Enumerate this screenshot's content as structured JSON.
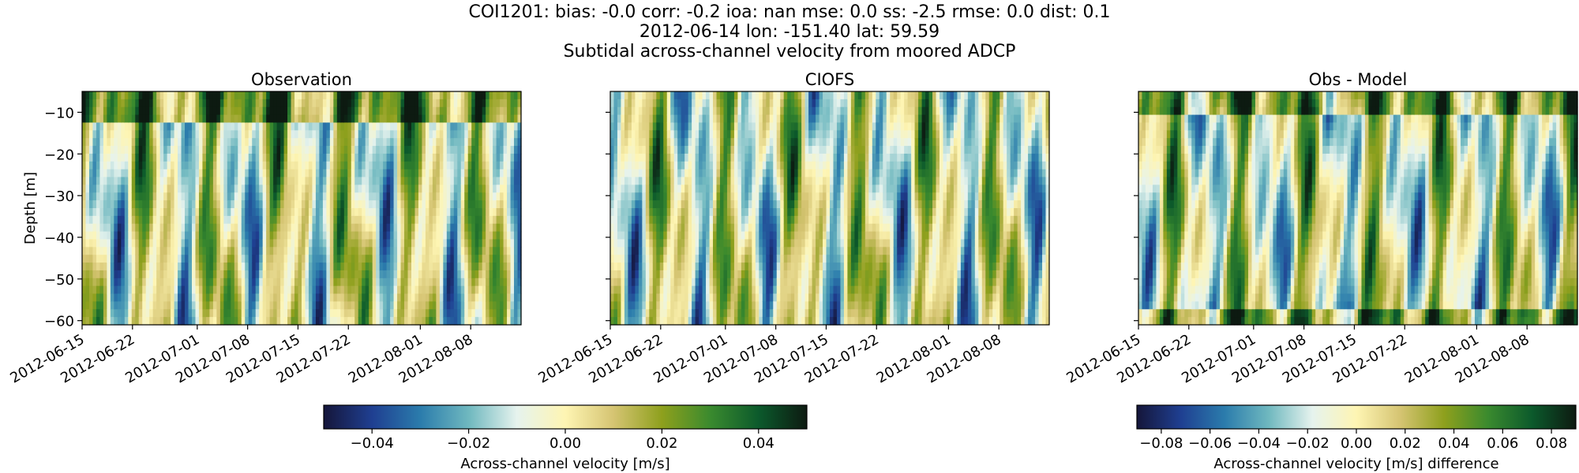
{
  "figure": {
    "title_lines": [
      "COI1201: bias: -0.0  corr: -0.2  ioa: nan  mse: 0.0  ss: -2.5  rmse: 0.0  dist: 0.1",
      "2012-06-14 lon: -151.40 lat: 59.59",
      "Subtidal across-channel velocity from moored ADCP"
    ]
  },
  "chart_data": [
    {
      "type": "heatmap",
      "title": "Observation",
      "xlabel": "",
      "ylabel": "Depth [m]",
      "x_range": [
        "2012-06-15",
        "2012-08-15"
      ],
      "y_range": [
        -61,
        -5
      ],
      "x_ticks": [
        "2012-06-15",
        "2012-06-22",
        "2012-07-01",
        "2012-07-08",
        "2012-07-15",
        "2012-07-22",
        "2012-08-01",
        "2012-08-08"
      ],
      "y_ticks": [
        -10,
        -20,
        -30,
        -40,
        -50,
        -60
      ],
      "colormap": "diverging blue-white-green",
      "color_range": [
        -0.05,
        0.05
      ],
      "grid": false,
      "pattern_seed": 1
    },
    {
      "type": "heatmap",
      "title": "CIOFS",
      "xlabel": "",
      "ylabel": "",
      "x_range": [
        "2012-06-15",
        "2012-08-15"
      ],
      "y_range": [
        -61,
        -5
      ],
      "x_ticks": [
        "2012-06-15",
        "2012-06-22",
        "2012-07-01",
        "2012-07-08",
        "2012-07-15",
        "2012-07-22",
        "2012-08-01",
        "2012-08-08"
      ],
      "y_ticks": [
        -10,
        -20,
        -30,
        -40,
        -50,
        -60
      ],
      "colormap": "diverging blue-white-green",
      "color_range": [
        -0.05,
        0.05
      ],
      "grid": false,
      "pattern_seed": 2
    },
    {
      "type": "heatmap",
      "title": "Obs - Model",
      "xlabel": "",
      "ylabel": "",
      "x_range": [
        "2012-06-15",
        "2012-08-15"
      ],
      "y_range": [
        -61,
        -5
      ],
      "x_ticks": [
        "2012-06-15",
        "2012-06-22",
        "2012-07-01",
        "2012-07-08",
        "2012-07-15",
        "2012-07-22",
        "2012-08-01",
        "2012-08-08"
      ],
      "y_ticks": [
        -10,
        -20,
        -30,
        -40,
        -50,
        -60
      ],
      "colormap": "diverging blue-white-green",
      "color_range": [
        -0.09,
        0.09
      ],
      "grid": false,
      "pattern_seed": 3
    }
  ],
  "colorbars": [
    {
      "label": "Across-channel velocity [m/s]",
      "ticks": [
        "−0.04",
        "−0.02",
        "0.00",
        "0.02",
        "0.04"
      ],
      "tick_values": [
        -0.04,
        -0.02,
        0.0,
        0.02,
        0.04
      ],
      "range": [
        -0.05,
        0.05
      ]
    },
    {
      "label": "Across-channel velocity [m/s] difference",
      "ticks": [
        "−0.08",
        "−0.06",
        "−0.04",
        "−0.02",
        "0.00",
        "0.02",
        "0.04",
        "0.06",
        "0.08"
      ],
      "tick_values": [
        -0.08,
        -0.06,
        -0.04,
        -0.02,
        0.0,
        0.02,
        0.04,
        0.06,
        0.08
      ],
      "range": [
        -0.09,
        0.09
      ]
    }
  ],
  "colors": {
    "stops": [
      "#15163a",
      "#1f3f91",
      "#2b7cac",
      "#6fb8bf",
      "#e6f3ee",
      "#fef5b3",
      "#d5c472",
      "#8ea01d",
      "#3a8a2e",
      "#0c5a2c",
      "#0d1a11"
    ]
  }
}
